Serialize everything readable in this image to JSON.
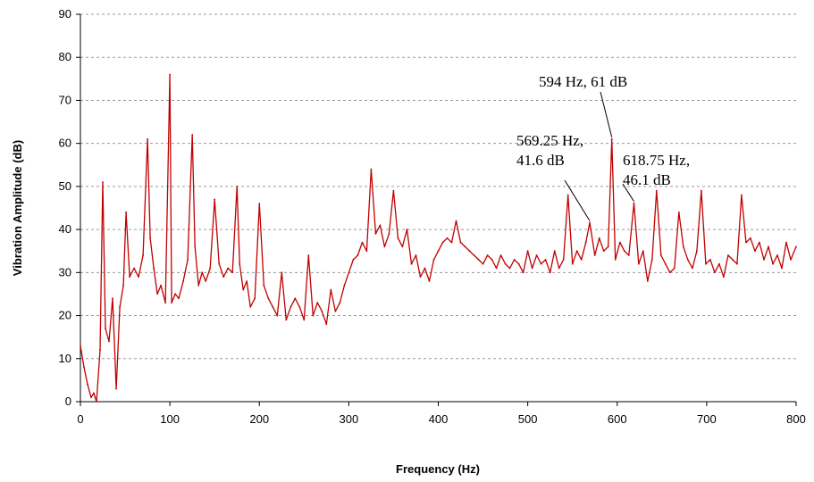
{
  "chart_data": {
    "type": "line",
    "title": "",
    "xlabel": "Frequency (Hz)",
    "ylabel": "Vibration Amplitude (dB)",
    "xlim": [
      0,
      800
    ],
    "ylim": [
      0,
      90
    ],
    "x_ticks": [
      0,
      100,
      200,
      300,
      400,
      500,
      600,
      700,
      800
    ],
    "y_ticks": [
      0,
      10,
      20,
      30,
      40,
      50,
      60,
      70,
      80,
      90
    ],
    "grid": "horizontal dashed",
    "legend": "none",
    "series": [
      {
        "color": "#c00000",
        "x": [
          0,
          4,
          8,
          12,
          15,
          18,
          22,
          25,
          28,
          32,
          36,
          40,
          44,
          48,
          51,
          55,
          60,
          65,
          70,
          75,
          78,
          82,
          86,
          90,
          95,
          100,
          102,
          106,
          110,
          115,
          120,
          125,
          128,
          132,
          136,
          140,
          145,
          150,
          155,
          160,
          165,
          170,
          175,
          178,
          182,
          186,
          190,
          195,
          200,
          205,
          210,
          215,
          220,
          225,
          230,
          235,
          240,
          245,
          250,
          255,
          260,
          265,
          270,
          275,
          280,
          285,
          290,
          295,
          300,
          305,
          310,
          315,
          320,
          325,
          330,
          335,
          340,
          345,
          350,
          355,
          360,
          365,
          370,
          375,
          380,
          385,
          390,
          395,
          400,
          405,
          410,
          415,
          420,
          425,
          430,
          435,
          440,
          445,
          450,
          455,
          460,
          465,
          470,
          475,
          480,
          485,
          490,
          495,
          500,
          505,
          510,
          515,
          520,
          525,
          530,
          535,
          540,
          545,
          550,
          555,
          560,
          565,
          569.25,
          575,
          580,
          585,
          590,
          594,
          598,
          603,
          608,
          613,
          618.75,
          624,
          629,
          634,
          639,
          644,
          649,
          654,
          659,
          664,
          669,
          674,
          679,
          684,
          689,
          694,
          699,
          704,
          709,
          714,
          719,
          724,
          729,
          734,
          739,
          744,
          749,
          754,
          759,
          764,
          769,
          774,
          779,
          784,
          789,
          794,
          800
        ],
        "y": [
          13,
          8,
          4,
          1,
          2,
          0,
          12,
          51,
          17,
          14,
          24,
          3,
          22,
          27,
          44,
          29,
          31,
          29,
          34,
          61,
          38,
          31,
          25,
          27,
          23,
          76,
          23,
          25,
          24,
          28,
          33,
          62,
          36,
          27,
          30,
          28,
          31,
          47,
          32,
          29,
          31,
          30,
          50,
          32,
          26,
          28,
          22,
          24,
          46,
          27,
          24,
          22,
          20,
          30,
          19,
          22,
          24,
          22,
          19,
          34,
          20,
          23,
          21,
          18,
          26,
          21,
          23,
          27,
          30,
          33,
          34,
          37,
          35,
          54,
          39,
          41,
          36,
          39,
          49,
          38,
          36,
          40,
          32,
          34,
          29,
          31,
          28,
          33,
          35,
          37,
          38,
          37,
          42,
          37,
          36,
          35,
          34,
          33,
          32,
          34,
          33,
          31,
          34,
          32,
          31,
          33,
          32,
          30,
          35,
          31,
          34,
          32,
          33,
          30,
          35,
          31,
          33,
          48,
          32,
          35,
          33,
          37,
          41.6,
          34,
          38,
          35,
          36,
          61,
          33,
          37,
          35,
          34,
          46.1,
          32,
          35,
          28,
          33,
          49,
          34,
          32,
          30,
          31,
          44,
          36,
          33,
          31,
          35,
          49,
          32,
          33,
          30,
          32,
          29,
          34,
          33,
          32,
          48,
          37,
          38,
          35,
          37,
          33,
          36,
          32,
          34,
          31,
          37,
          33,
          36
        ]
      }
    ],
    "annotations": [
      {
        "text_lines": [
          "594 Hz, 61 dB"
        ],
        "x": 594,
        "y": 61
      },
      {
        "text_lines": [
          "569.25 Hz,",
          "41.6 dB"
        ],
        "x": 569.25,
        "y": 41.6
      },
      {
        "text_lines": [
          "618.75 Hz,",
          "46.1 dB"
        ],
        "x": 618.75,
        "y": 46.1
      }
    ]
  }
}
